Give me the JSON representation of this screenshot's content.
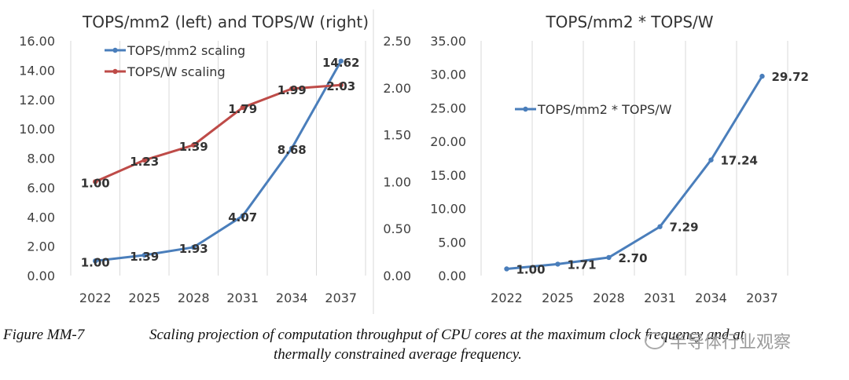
{
  "chart_data": [
    {
      "type": "line",
      "title": "TOPS/mm2 (left) and TOPS/W (right)",
      "categories": [
        "2022",
        "2025",
        "2028",
        "2031",
        "2034",
        "2037"
      ],
      "y_left": {
        "range": [
          0,
          16
        ],
        "ticks": [
          "0.00",
          "2.00",
          "4.00",
          "6.00",
          "8.00",
          "10.00",
          "12.00",
          "14.00",
          "16.00"
        ]
      },
      "y_right": {
        "range": [
          0,
          2.5
        ],
        "ticks": [
          "0.00",
          "0.50",
          "1.00",
          "1.50",
          "2.00",
          "2.50"
        ]
      },
      "grid": "vertical",
      "legend": "top-left",
      "series": [
        {
          "name": "TOPS/mm2 scaling",
          "axis": "left",
          "color": "#4a7ebb",
          "values": [
            1.0,
            1.39,
            1.93,
            4.07,
            8.68,
            14.62
          ],
          "labels": [
            "1.00",
            "1.39",
            "1.93",
            "4.07",
            "8.68",
            "14.62"
          ]
        },
        {
          "name": "TOPS/W scaling",
          "axis": "right",
          "color": "#be4b48",
          "values": [
            1.0,
            1.23,
            1.39,
            1.79,
            1.99,
            2.03
          ],
          "labels": [
            "1.00",
            "1.23",
            "1.39",
            "1.79",
            "1.99",
            "2.03"
          ]
        }
      ]
    },
    {
      "type": "line",
      "title": "TOPS/mm2  * TOPS/W",
      "categories": [
        "2022",
        "2025",
        "2028",
        "2031",
        "2034",
        "2037"
      ],
      "y": {
        "range": [
          0,
          35
        ],
        "ticks": [
          "0.00",
          "5.00",
          "10.00",
          "15.00",
          "20.00",
          "25.00",
          "30.00",
          "35.00"
        ]
      },
      "grid": "vertical",
      "legend": "top-left",
      "series": [
        {
          "name": "TOPS/mm2 * TOPS/W",
          "color": "#4a7ebb",
          "values": [
            1.0,
            1.71,
            2.7,
            7.29,
            17.24,
            29.72
          ],
          "labels": [
            "1.00",
            "1.71",
            "2.70",
            "7.29",
            "17.24",
            "29.72"
          ]
        }
      ]
    }
  ],
  "caption": {
    "figure_label": "Figure MM-7",
    "line1": "Scaling projection of computation throughput of CPU cores at the maximum clock frequency and at",
    "line2": "thermally constrained average frequency."
  },
  "watermark": {
    "text": "半导体行业观察"
  }
}
